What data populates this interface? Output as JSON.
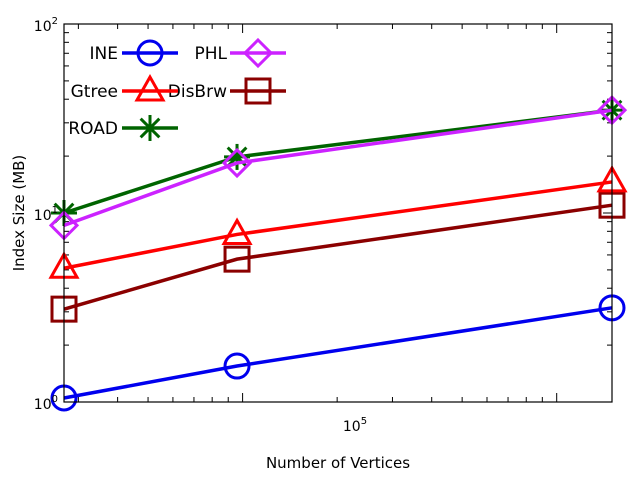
{
  "chart_data": {
    "type": "line",
    "title": "",
    "xlabel": "Number of Vertices",
    "ylabel": "Index Size (MB)",
    "xscale": "log",
    "yscale": "log",
    "xlim": [
      27000,
      1500000
    ],
    "ylim": [
      1,
      100
    ],
    "x": [
      27000,
      96000,
      1500000
    ],
    "x_tick_labels": [
      {
        "value": 100000,
        "base": "10",
        "exp": "5"
      }
    ],
    "y_tick_labels": [
      {
        "value": 1,
        "base": "10",
        "exp": "0"
      },
      {
        "value": 10,
        "base": "10",
        "exp": "1"
      },
      {
        "value": 100,
        "base": "10",
        "exp": "2"
      }
    ],
    "legend_position": "top-left",
    "series": [
      {
        "name": "INE",
        "color": "#0000ee",
        "marker": "circle",
        "values": [
          1.05,
          1.55,
          3.15
        ]
      },
      {
        "name": "Gtree",
        "color": "#ff0000",
        "marker": "triangle",
        "values": [
          5.1,
          7.7,
          14.6
        ]
      },
      {
        "name": "ROAD",
        "color": "#006400",
        "marker": "star",
        "values": [
          10.0,
          19.8,
          35.0
        ]
      },
      {
        "name": "PHL",
        "color": "#cc22ff",
        "marker": "diamond",
        "values": [
          8.6,
          18.4,
          35.0
        ]
      },
      {
        "name": "DisBrw",
        "color": "#8b0000",
        "marker": "square",
        "values": [
          3.1,
          5.7,
          11.0
        ]
      }
    ]
  }
}
